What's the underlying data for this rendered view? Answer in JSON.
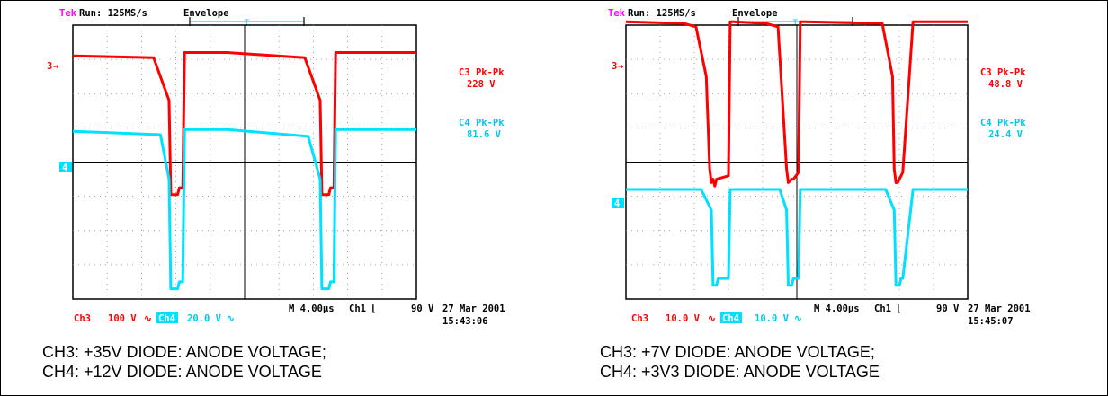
{
  "chart_data": [
    {
      "type": "line",
      "title": "",
      "header": {
        "brand": "Tek",
        "run": "Run: 125MS/s",
        "mode": "Envelope"
      },
      "xlabel": "",
      "ylabel": "",
      "x_range": [
        0,
        10
      ],
      "y_range": [
        -4,
        4
      ],
      "grid": true,
      "colors": {
        "ch3": "#ff0000",
        "ch4": "#00e0ff"
      },
      "channel_markers": {
        "ch3": "3",
        "ch4": "4"
      },
      "readouts": [
        {
          "label": "C3 Pk-Pk",
          "value": "228 V",
          "color": "#ff0000"
        },
        {
          "label": "C4 Pk-Pk",
          "value": "81.6 V",
          "color": "#00c8e8"
        }
      ],
      "footer": {
        "ch3": "Ch3",
        "ch3_scale": "100 V",
        "ch4": "Ch4",
        "ch4_scale": "20.0 V",
        "time": "M 4.00µs",
        "trigger_src": "Ch1",
        "trigger_level": "90 V",
        "date": "27 Mar 2001",
        "clock": "15:43:06"
      },
      "series": [
        {
          "name": "Ch3",
          "x": [
            0,
            2.35,
            2.55,
            2.8,
            2.85,
            3.05,
            3.1,
            3.2,
            3.25,
            4.2,
            4.25,
            4.3,
            4.5,
            6.75,
            6.95,
            7.2,
            7.25,
            7.45,
            7.5,
            7.6,
            7.65,
            9.1,
            9.15,
            9.2,
            10
          ],
          "y": [
            3.1,
            3.05,
            2.5,
            1.8,
            -0.95,
            -0.95,
            -0.75,
            -0.75,
            3.2,
            3.2,
            3.2,
            3.2,
            3.2,
            3.05,
            2.5,
            1.8,
            -0.95,
            -0.95,
            -0.75,
            -0.75,
            3.2,
            3.2,
            3.2,
            3.2,
            3.2
          ]
        },
        {
          "name": "Ch4",
          "x": [
            0,
            2.55,
            2.8,
            2.85,
            3.05,
            3.1,
            3.2,
            3.25,
            4.2,
            4.25,
            4.3,
            4.5,
            6.85,
            7.2,
            7.25,
            7.45,
            7.5,
            7.6,
            7.65,
            9.1,
            9.15,
            9.2,
            10
          ],
          "y": [
            0.9,
            0.8,
            -0.5,
            -3.7,
            -3.7,
            -3.5,
            -3.5,
            0.95,
            0.95,
            0.95,
            0.95,
            0.95,
            0.75,
            -0.5,
            -3.7,
            -3.7,
            -3.5,
            -3.5,
            0.95,
            0.95,
            0.95,
            0.95,
            0.95
          ]
        }
      ],
      "caption": [
        "CH3: +35V DIODE: ANODE VOLTAGE;",
        "CH4: +12V DIODE:  ANODE VOLTAGE"
      ]
    },
    {
      "type": "line",
      "title": "",
      "header": {
        "brand": "Tek",
        "run": "Run: 125MS/s",
        "mode": "Envelope"
      },
      "xlabel": "",
      "ylabel": "",
      "x_range": [
        0,
        10
      ],
      "y_range": [
        -4,
        4
      ],
      "grid": true,
      "colors": {
        "ch3": "#ff0000",
        "ch4": "#00e0ff"
      },
      "channel_markers": {
        "ch3": "3",
        "ch4": "4"
      },
      "readouts": [
        {
          "label": "C3 Pk-Pk",
          "value": "48.8 V",
          "color": "#ff0000"
        },
        {
          "label": "C4 Pk-Pk",
          "value": "24.4 V",
          "color": "#00c8e8"
        }
      ],
      "footer": {
        "ch3": "Ch3",
        "ch3_scale": "10.0 V",
        "ch4": "Ch4",
        "ch4_scale": "10.0 V",
        "time": "M 4.00µs",
        "trigger_src": "Ch1",
        "trigger_level": "90 V",
        "date": "27 Mar 2001",
        "clock": "15:45:07"
      },
      "series": [
        {
          "name": "Ch3",
          "x": [
            0,
            1.7,
            2.05,
            2.35,
            2.45,
            2.5,
            2.55,
            2.6,
            2.65,
            3.0,
            3.05,
            3.15,
            4.1,
            4.45,
            4.7,
            4.75,
            4.85,
            4.9,
            5.05,
            5.1,
            5.25,
            7.5,
            7.8,
            7.85,
            7.9,
            7.95,
            8.05,
            8.1,
            8.4,
            10
          ],
          "y": [
            4.1,
            4.05,
            3.95,
            2.5,
            -0.2,
            -0.6,
            -0.5,
            -0.7,
            -0.5,
            -0.4,
            4.1,
            4.1,
            4.05,
            3.95,
            -0.2,
            -0.6,
            -0.5,
            -0.5,
            -0.3,
            4.1,
            4.1,
            4.05,
            2.5,
            -0.2,
            -0.6,
            -0.6,
            -0.4,
            -0.3,
            4.1,
            4.1
          ]
        },
        {
          "name": "Ch4",
          "x": [
            0,
            2.2,
            2.5,
            2.55,
            2.65,
            2.7,
            3.0,
            3.05,
            3.15,
            4.5,
            4.7,
            4.75,
            4.85,
            4.9,
            5.05,
            5.1,
            5.25,
            7.6,
            7.85,
            7.9,
            8.0,
            8.05,
            8.1,
            8.4,
            10
          ],
          "y": [
            -0.8,
            -0.8,
            -1.4,
            -3.6,
            -3.6,
            -3.4,
            -3.4,
            -0.8,
            -0.8,
            -0.8,
            -1.4,
            -3.6,
            -3.6,
            -3.4,
            -3.4,
            -0.8,
            -0.8,
            -0.8,
            -1.4,
            -3.6,
            -3.6,
            -3.4,
            -3.4,
            -0.8,
            -0.8
          ]
        }
      ],
      "caption": [
        "CH3: +7V DIODE:  ANODE VOLTAGE;",
        "CH4: +3V3 DIODE: ANODE VOLTAGE"
      ]
    }
  ]
}
